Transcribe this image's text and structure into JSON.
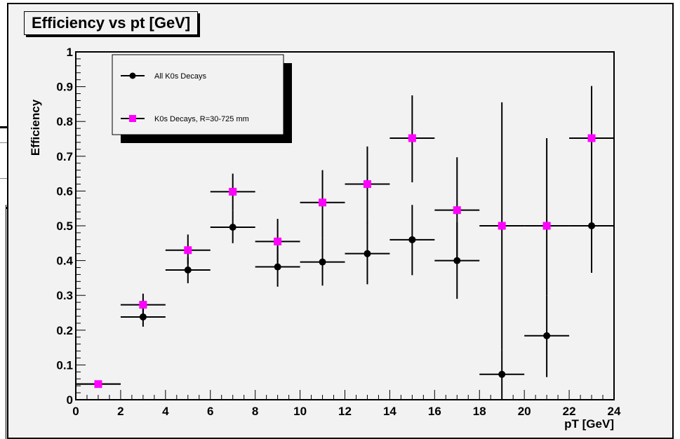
{
  "title": "Efficiency vs pt [GeV]",
  "colors": {
    "background": "#f2f2f2",
    "series_all": "#000000",
    "series_r": "#ff00ff"
  },
  "chart_data": {
    "type": "scatter",
    "title": "Efficiency vs pt [GeV]",
    "xlabel": "pT [GeV]",
    "ylabel": "Efficiency",
    "xlim": [
      0,
      24
    ],
    "ylim": [
      0,
      1
    ],
    "xticks": [
      0,
      2,
      4,
      6,
      8,
      10,
      12,
      14,
      16,
      18,
      20,
      22,
      24
    ],
    "yticks": [
      0,
      0.1,
      0.2,
      0.3,
      0.4,
      0.5,
      0.6,
      0.7,
      0.8,
      0.9,
      1
    ],
    "ytick_labels": [
      "0",
      "0.1",
      "0.2",
      "0.3",
      "0.4",
      "0.5",
      "0.6",
      "0.7",
      "0.8",
      "0.9",
      "1"
    ],
    "grid": false,
    "legend_position": "top-left",
    "series": [
      {
        "name": "All K0s Decays",
        "marker": "circle",
        "color": "#000000",
        "points": [
          {
            "x": 1,
            "xerr": 1,
            "y": 0.045,
            "ylo": 0.045,
            "yhi": 0.045
          },
          {
            "x": 3,
            "xerr": 1,
            "y": 0.238,
            "ylo": 0.21,
            "yhi": 0.265
          },
          {
            "x": 5,
            "xerr": 1,
            "y": 0.373,
            "ylo": 0.335,
            "yhi": 0.41
          },
          {
            "x": 7,
            "xerr": 1,
            "y": 0.496,
            "ylo": 0.45,
            "yhi": 0.545
          },
          {
            "x": 9,
            "xerr": 1,
            "y": 0.382,
            "ylo": 0.325,
            "yhi": 0.44
          },
          {
            "x": 11,
            "xerr": 1,
            "y": 0.396,
            "ylo": 0.328,
            "yhi": 0.465
          },
          {
            "x": 13,
            "xerr": 1,
            "y": 0.42,
            "ylo": 0.332,
            "yhi": 0.51
          },
          {
            "x": 15,
            "xerr": 1,
            "y": 0.46,
            "ylo": 0.358,
            "yhi": 0.56
          },
          {
            "x": 17,
            "xerr": 1,
            "y": 0.4,
            "ylo": 0.29,
            "yhi": 0.51
          },
          {
            "x": 19,
            "xerr": 1,
            "y": 0.073,
            "ylo": 0.0,
            "yhi": 0.145
          },
          {
            "x": 21,
            "xerr": 1,
            "y": 0.184,
            "ylo": 0.065,
            "yhi": 0.3
          },
          {
            "x": 23,
            "xerr": 1,
            "y": 0.5,
            "ylo": 0.365,
            "yhi": 0.635
          }
        ]
      },
      {
        "name": "K0s Decays, R=30-725 mm",
        "marker": "square",
        "color": "#ff00ff",
        "points": [
          {
            "x": 1,
            "xerr": 1,
            "y": 0.045,
            "ylo": 0.045,
            "yhi": 0.045
          },
          {
            "x": 3,
            "xerr": 1,
            "y": 0.273,
            "ylo": 0.24,
            "yhi": 0.305
          },
          {
            "x": 5,
            "xerr": 1,
            "y": 0.43,
            "ylo": 0.39,
            "yhi": 0.475
          },
          {
            "x": 7,
            "xerr": 1,
            "y": 0.598,
            "ylo": 0.545,
            "yhi": 0.65
          },
          {
            "x": 9,
            "xerr": 1,
            "y": 0.455,
            "ylo": 0.395,
            "yhi": 0.52
          },
          {
            "x": 11,
            "xerr": 1,
            "y": 0.567,
            "ylo": 0.465,
            "yhi": 0.66
          },
          {
            "x": 13,
            "xerr": 1,
            "y": 0.62,
            "ylo": 0.505,
            "yhi": 0.728
          },
          {
            "x": 15,
            "xerr": 1,
            "y": 0.752,
            "ylo": 0.625,
            "yhi": 0.875
          },
          {
            "x": 17,
            "xerr": 1,
            "y": 0.545,
            "ylo": 0.4,
            "yhi": 0.697
          },
          {
            "x": 19,
            "xerr": 1,
            "y": 0.5,
            "ylo": 0.145,
            "yhi": 0.855
          },
          {
            "x": 21,
            "xerr": 1,
            "y": 0.5,
            "ylo": 0.3,
            "yhi": 0.752
          },
          {
            "x": 23,
            "xerr": 1,
            "y": 0.752,
            "ylo": 0.5,
            "yhi": 0.902
          }
        ]
      }
    ]
  }
}
